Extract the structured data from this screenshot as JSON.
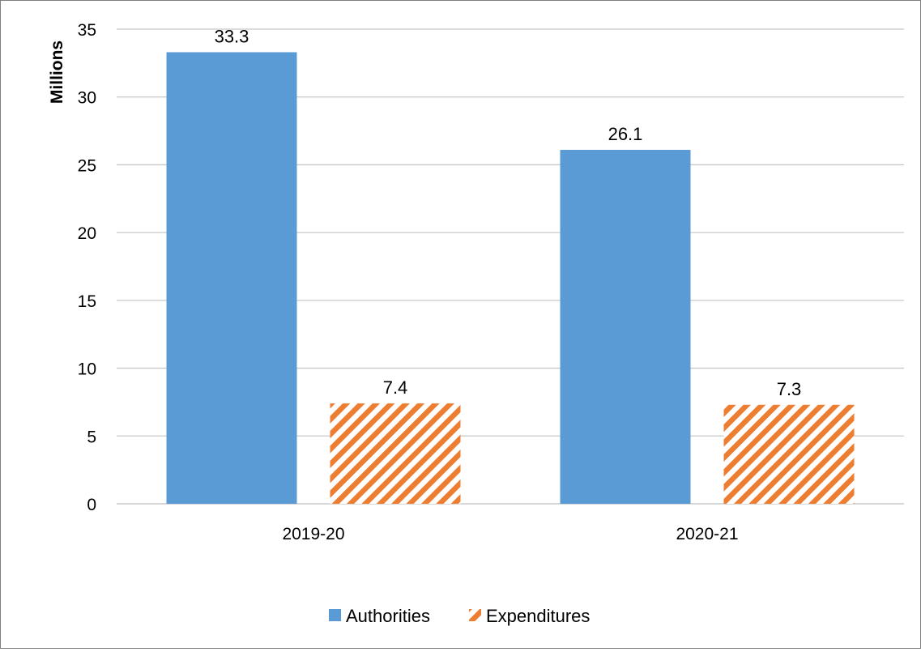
{
  "chart_data": {
    "type": "bar",
    "ylabel": "Millions",
    "categories": [
      "2019-20",
      "2020-21"
    ],
    "ylim": [
      0,
      35
    ],
    "yticks": [
      0,
      5,
      10,
      15,
      20,
      25,
      30,
      35
    ],
    "grid": true,
    "legend_position": "bottom",
    "series": [
      {
        "name": "Authorities",
        "values": [
          33.3,
          26.1
        ],
        "labels": [
          "33.3",
          "26.1"
        ],
        "color": "#5b9bd5",
        "fill": "solid"
      },
      {
        "name": "Expenditures",
        "values": [
          7.4,
          7.3
        ],
        "labels": [
          "7.4",
          "7.3"
        ],
        "color": "#ed7d31",
        "fill": "diagonal-stripes"
      }
    ]
  }
}
